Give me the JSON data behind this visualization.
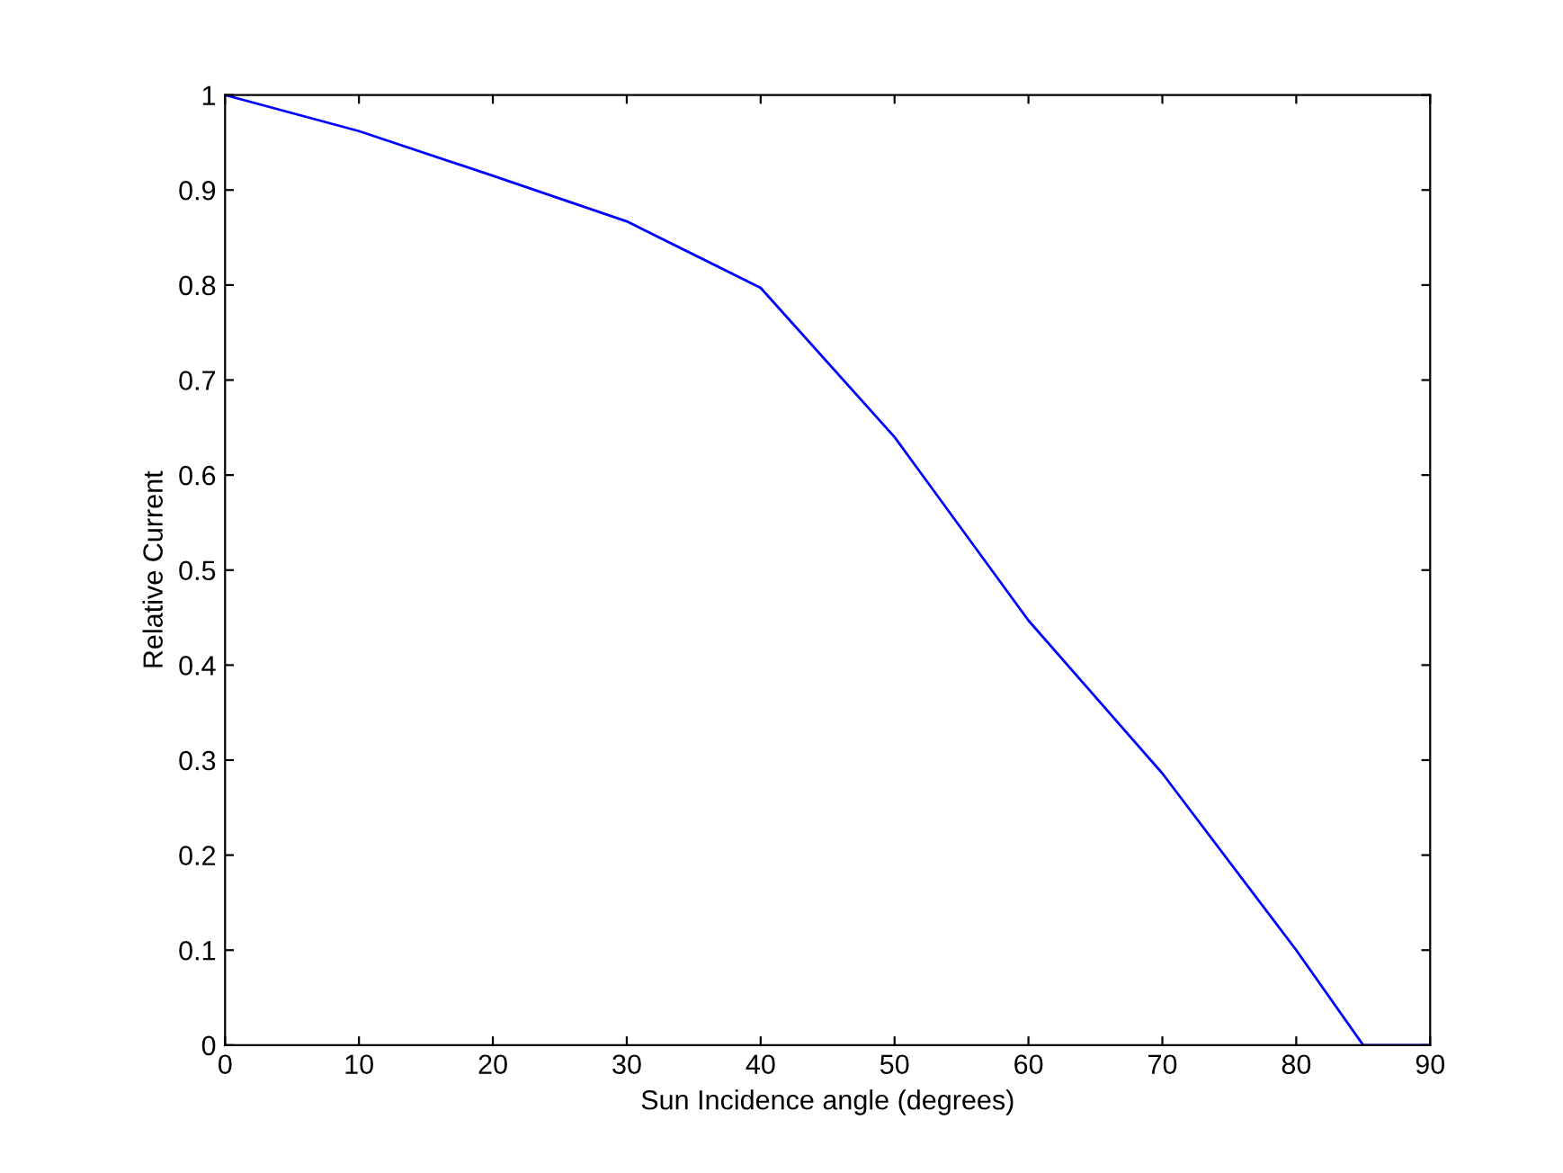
{
  "chart_data": {
    "type": "line",
    "xlabel": "Sun Incidence angle (degrees)",
    "ylabel": "Relative Current",
    "x": [
      0,
      10,
      20,
      30,
      40,
      50,
      60,
      70,
      80,
      85,
      90
    ],
    "series": [
      {
        "color": "#0000ff",
        "values": [
          1,
          0.962,
          0.915,
          0.867,
          0.797,
          0.64,
          0.447,
          0.286,
          0.1,
          0,
          0
        ]
      }
    ],
    "xlim": [
      0,
      90
    ],
    "xticks": [
      0,
      10,
      20,
      30,
      40,
      50,
      60,
      70,
      80,
      90
    ],
    "ylim": [
      0,
      1
    ],
    "yticks": [
      0,
      0.1,
      0.2,
      0.3,
      0.4,
      0.5,
      0.6,
      0.7,
      0.8,
      0.9,
      1
    ],
    "marker": "none",
    "line_style": "solid"
  }
}
